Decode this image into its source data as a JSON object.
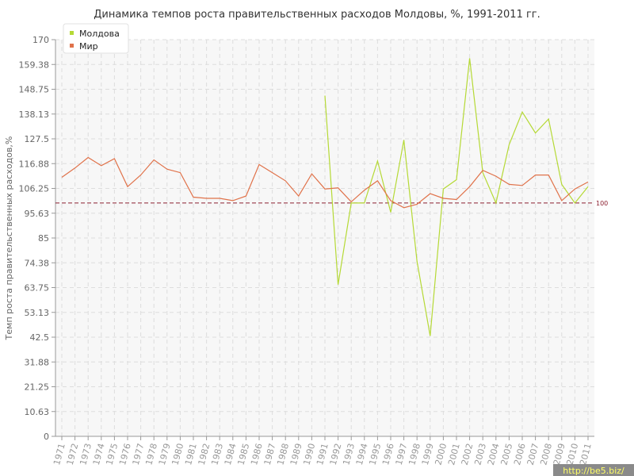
{
  "chart_data": {
    "type": "line",
    "title": "Динамика темпов роста правительственных расходов Молдовы, %, 1991-2011 гг.",
    "ylabel": "Темп роста правительственных расходов,%",
    "ylim": [
      0,
      170
    ],
    "yticks": [
      "0",
      "10.63",
      "21.25",
      "31.88",
      "42.5",
      "53.13",
      "63.75",
      "74.38",
      "85",
      "95.63",
      "106.25",
      "116.88",
      "127.5",
      "138.13",
      "148.75",
      "159.38",
      "170"
    ],
    "x": [
      1971,
      1972,
      1973,
      1974,
      1975,
      1976,
      1977,
      1978,
      1979,
      1980,
      1981,
      1982,
      1983,
      1984,
      1985,
      1986,
      1987,
      1988,
      1989,
      1990,
      1991,
      1992,
      1993,
      1994,
      1995,
      1996,
      1997,
      1998,
      1999,
      2000,
      2001,
      2002,
      2003,
      2004,
      2005,
      2006,
      2007,
      2008,
      2009,
      2010,
      2011
    ],
    "grid": true,
    "legend_position": "top-left",
    "reference_line": {
      "value": 100,
      "label": "100",
      "color": "#8b2030"
    },
    "series": [
      {
        "name": "Молдова",
        "color": "#b5d935",
        "values": [
          null,
          null,
          null,
          null,
          null,
          null,
          null,
          null,
          null,
          null,
          null,
          null,
          null,
          null,
          null,
          null,
          null,
          null,
          null,
          null,
          146,
          65,
          100,
          100,
          118,
          96,
          127,
          75,
          43,
          106,
          110,
          162,
          113,
          100,
          125,
          139,
          130,
          136,
          108,
          100,
          107
        ]
      },
      {
        "name": "Мир",
        "color": "#e0724a",
        "values": [
          111,
          115,
          119.5,
          116,
          119,
          107,
          112,
          118.5,
          114.5,
          113,
          102.5,
          102,
          102,
          101,
          103,
          116.5,
          113,
          109.5,
          103,
          112.5,
          106,
          106.5,
          100.5,
          105.5,
          109.5,
          101,
          98,
          99.5,
          104,
          102,
          101.5,
          107,
          114,
          111.5,
          108,
          107.5,
          112,
          112,
          101,
          106,
          109
        ]
      }
    ]
  },
  "colors": {
    "axis": "#999999",
    "grid": "#dddddd"
  },
  "watermark": "http://be5.biz/"
}
